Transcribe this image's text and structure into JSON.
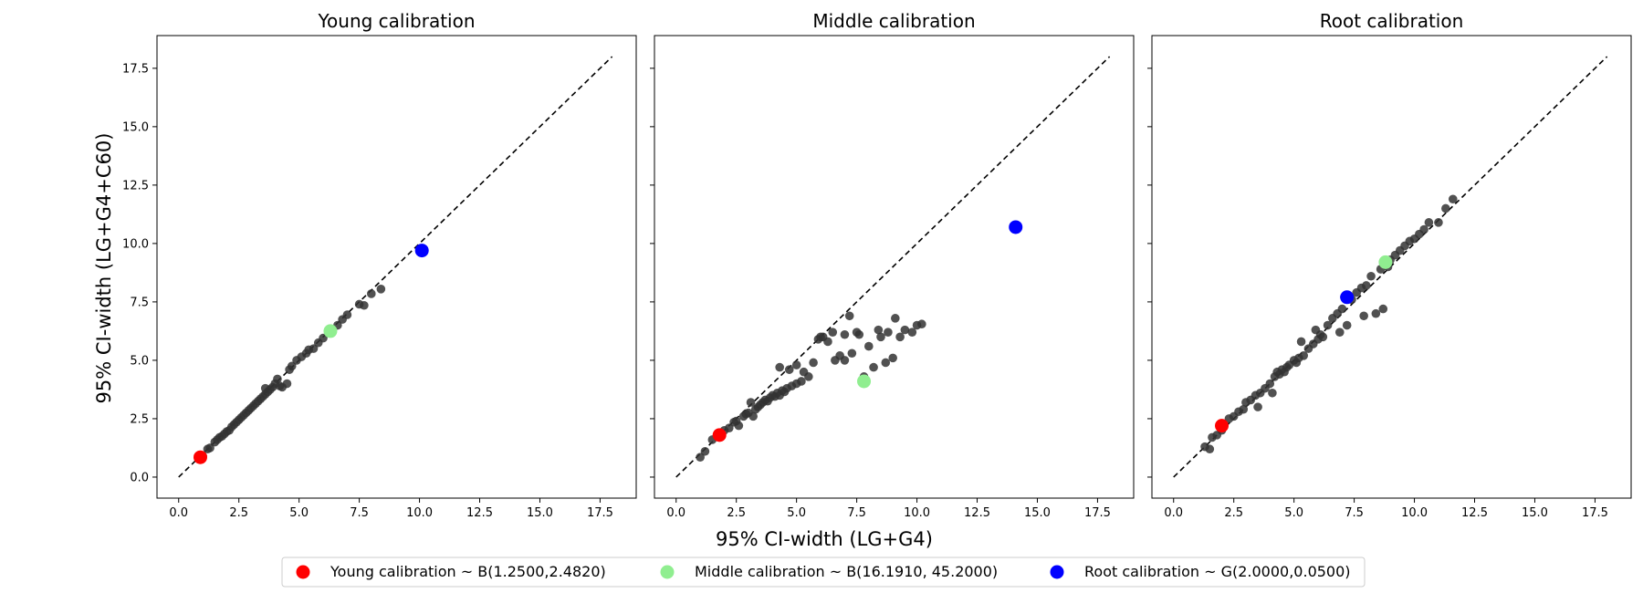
{
  "chart_data": [
    {
      "type": "scatter",
      "title": "Young calibration",
      "xlabel": "95% CI-width (LG+G4)",
      "ylabel": "95% CI-width (LG+G4+C60)",
      "xlim": [
        -0.9,
        19.0
      ],
      "ylim": [
        -0.9,
        18.9
      ],
      "xticks": [
        "0.0",
        "2.5",
        "5.0",
        "7.5",
        "10.0",
        "12.5",
        "15.0",
        "17.5"
      ],
      "yticks": [
        "0.0",
        "2.5",
        "5.0",
        "7.5",
        "10.0",
        "12.5",
        "15.0",
        "17.5"
      ],
      "reference_line": {
        "x": [
          0,
          18
        ],
        "y": [
          0,
          18
        ],
        "style": "dashed",
        "color": "#000000"
      },
      "series": [
        {
          "color": "#333333",
          "points": [
            [
              0.85,
              0.8
            ],
            [
              1.0,
              0.9
            ],
            [
              1.2,
              1.2
            ],
            [
              1.3,
              1.25
            ],
            [
              1.5,
              1.5
            ],
            [
              1.6,
              1.6
            ],
            [
              1.7,
              1.7
            ],
            [
              1.8,
              1.75
            ],
            [
              1.9,
              1.85
            ],
            [
              2.0,
              1.95
            ],
            [
              2.1,
              2.0
            ],
            [
              2.2,
              2.15
            ],
            [
              2.3,
              2.25
            ],
            [
              2.4,
              2.35
            ],
            [
              2.5,
              2.45
            ],
            [
              2.6,
              2.55
            ],
            [
              2.7,
              2.65
            ],
            [
              2.8,
              2.75
            ],
            [
              2.9,
              2.85
            ],
            [
              3.0,
              2.95
            ],
            [
              3.1,
              3.05
            ],
            [
              3.2,
              3.15
            ],
            [
              3.3,
              3.25
            ],
            [
              3.4,
              3.35
            ],
            [
              3.5,
              3.45
            ],
            [
              3.6,
              3.55
            ],
            [
              3.7,
              3.65
            ],
            [
              3.8,
              3.75
            ],
            [
              3.9,
              3.85
            ],
            [
              4.0,
              4.0
            ],
            [
              4.2,
              3.9
            ],
            [
              4.3,
              3.85
            ],
            [
              4.5,
              4.0
            ],
            [
              4.6,
              4.6
            ],
            [
              4.7,
              4.75
            ],
            [
              4.9,
              5.0
            ],
            [
              5.1,
              5.15
            ],
            [
              5.3,
              5.3
            ],
            [
              5.4,
              5.45
            ],
            [
              5.6,
              5.5
            ],
            [
              5.8,
              5.75
            ],
            [
              6.0,
              5.95
            ],
            [
              6.3,
              6.2
            ],
            [
              6.6,
              6.5
            ],
            [
              6.8,
              6.75
            ],
            [
              7.0,
              6.95
            ],
            [
              7.5,
              7.4
            ],
            [
              7.7,
              7.35
            ],
            [
              8.0,
              7.85
            ],
            [
              8.4,
              8.05
            ],
            [
              3.6,
              3.8
            ],
            [
              4.1,
              4.2
            ]
          ]
        },
        {
          "name": "Young calibration ~ B(1.2500,2.4820)",
          "color": "#ff0000",
          "points": [
            [
              0.9,
              0.85
            ]
          ]
        },
        {
          "name": "Middle calibration ~ B(16.1910, 45.2000)",
          "color": "#90ee90",
          "points": [
            [
              6.3,
              6.25
            ]
          ]
        },
        {
          "name": "Root calibration ~ G(2.0000,0.0500)",
          "color": "#0000ff",
          "points": [
            [
              10.1,
              9.7
            ]
          ]
        }
      ]
    },
    {
      "type": "scatter",
      "title": "Middle calibration",
      "xlabel": "95% CI-width (LG+G4)",
      "ylabel": "95% CI-width (LG+G4+C60)",
      "xlim": [
        -0.9,
        19.0
      ],
      "ylim": [
        -0.9,
        18.9
      ],
      "xticks": [
        "0.0",
        "2.5",
        "5.0",
        "7.5",
        "10.0",
        "12.5",
        "15.0",
        "17.5"
      ],
      "yticks": [
        "0.0",
        "2.5",
        "5.0",
        "7.5",
        "10.0",
        "12.5",
        "15.0",
        "17.5"
      ],
      "reference_line": {
        "x": [
          0,
          18
        ],
        "y": [
          0,
          18
        ],
        "style": "dashed",
        "color": "#000000"
      },
      "series": [
        {
          "color": "#333333",
          "points": [
            [
              1.0,
              0.85
            ],
            [
              1.2,
              1.1
            ],
            [
              1.5,
              1.6
            ],
            [
              1.7,
              1.8
            ],
            [
              2.0,
              2.0
            ],
            [
              2.2,
              2.1
            ],
            [
              2.4,
              2.35
            ],
            [
              2.5,
              2.4
            ],
            [
              2.6,
              2.2
            ],
            [
              2.8,
              2.6
            ],
            [
              2.9,
              2.7
            ],
            [
              3.0,
              2.75
            ],
            [
              3.1,
              3.2
            ],
            [
              3.2,
              2.6
            ],
            [
              3.3,
              2.9
            ],
            [
              3.4,
              3.0
            ],
            [
              3.5,
              3.1
            ],
            [
              3.6,
              3.2
            ],
            [
              3.7,
              3.3
            ],
            [
              3.8,
              3.25
            ],
            [
              3.9,
              3.4
            ],
            [
              4.0,
              3.5
            ],
            [
              4.1,
              3.45
            ],
            [
              4.2,
              3.6
            ],
            [
              4.3,
              3.5
            ],
            [
              4.4,
              3.7
            ],
            [
              4.5,
              3.65
            ],
            [
              4.6,
              3.8
            ],
            [
              4.8,
              3.9
            ],
            [
              5.0,
              4.0
            ],
            [
              5.2,
              4.1
            ],
            [
              5.5,
              4.3
            ],
            [
              4.3,
              4.7
            ],
            [
              4.7,
              4.6
            ],
            [
              5.0,
              4.8
            ],
            [
              5.7,
              4.9
            ],
            [
              5.9,
              5.9
            ],
            [
              6.0,
              6.0
            ],
            [
              6.3,
              5.8
            ],
            [
              6.5,
              6.2
            ],
            [
              6.6,
              5.0
            ],
            [
              6.8,
              5.2
            ],
            [
              7.0,
              5.0
            ],
            [
              7.2,
              6.9
            ],
            [
              7.3,
              5.3
            ],
            [
              7.5,
              6.2
            ],
            [
              7.6,
              6.1
            ],
            [
              7.8,
              4.3
            ],
            [
              8.0,
              5.6
            ],
            [
              8.2,
              4.7
            ],
            [
              8.4,
              6.3
            ],
            [
              8.5,
              6.0
            ],
            [
              8.7,
              4.9
            ],
            [
              8.8,
              6.2
            ],
            [
              9.0,
              5.1
            ],
            [
              9.1,
              6.8
            ],
            [
              9.3,
              6.0
            ],
            [
              9.5,
              6.3
            ],
            [
              9.8,
              6.2
            ],
            [
              10.0,
              6.5
            ],
            [
              10.2,
              6.55
            ],
            [
              7.0,
              6.1
            ],
            [
              6.1,
              6.0
            ],
            [
              5.3,
              4.5
            ]
          ]
        },
        {
          "name": "Young calibration ~ B(1.2500,2.4820)",
          "color": "#ff0000",
          "points": [
            [
              1.8,
              1.8
            ]
          ]
        },
        {
          "name": "Middle calibration ~ B(16.1910, 45.2000)",
          "color": "#90ee90",
          "points": [
            [
              7.8,
              4.1
            ]
          ]
        },
        {
          "name": "Root calibration ~ G(2.0000,0.0500)",
          "color": "#0000ff",
          "points": [
            [
              14.1,
              10.7
            ]
          ]
        }
      ]
    },
    {
      "type": "scatter",
      "title": "Root calibration",
      "xlabel": "95% CI-width (LG+G4)",
      "ylabel": "95% CI-width (LG+G4+C60)",
      "xlim": [
        -0.9,
        19.0
      ],
      "ylim": [
        -0.9,
        18.9
      ],
      "xticks": [
        "0.0",
        "2.5",
        "5.0",
        "7.5",
        "10.0",
        "12.5",
        "15.0",
        "17.5"
      ],
      "yticks": [
        "0.0",
        "2.5",
        "5.0",
        "7.5",
        "10.0",
        "12.5",
        "15.0",
        "17.5"
      ],
      "reference_line": {
        "x": [
          0,
          18
        ],
        "y": [
          0,
          18
        ],
        "style": "dashed",
        "color": "#000000"
      },
      "series": [
        {
          "color": "#333333",
          "points": [
            [
              1.3,
              1.3
            ],
            [
              1.5,
              1.2
            ],
            [
              1.6,
              1.7
            ],
            [
              1.8,
              1.8
            ],
            [
              2.0,
              2.0
            ],
            [
              2.3,
              2.5
            ],
            [
              2.5,
              2.6
            ],
            [
              2.7,
              2.8
            ],
            [
              2.9,
              2.9
            ],
            [
              3.0,
              3.2
            ],
            [
              3.2,
              3.3
            ],
            [
              3.4,
              3.5
            ],
            [
              3.6,
              3.6
            ],
            [
              3.5,
              3.0
            ],
            [
              3.8,
              3.8
            ],
            [
              4.0,
              4.0
            ],
            [
              4.1,
              3.6
            ],
            [
              4.2,
              4.3
            ],
            [
              4.4,
              4.4
            ],
            [
              4.5,
              4.6
            ],
            [
              4.6,
              4.5
            ],
            [
              4.8,
              4.8
            ],
            [
              5.0,
              5.0
            ],
            [
              5.2,
              5.1
            ],
            [
              5.3,
              5.8
            ],
            [
              5.4,
              5.2
            ],
            [
              5.6,
              5.5
            ],
            [
              5.8,
              5.7
            ],
            [
              5.9,
              6.3
            ],
            [
              6.0,
              5.9
            ],
            [
              6.2,
              6.0
            ],
            [
              6.4,
              6.5
            ],
            [
              6.6,
              6.8
            ],
            [
              6.8,
              7.0
            ],
            [
              6.9,
              6.2
            ],
            [
              7.0,
              7.2
            ],
            [
              7.2,
              6.5
            ],
            [
              7.4,
              7.6
            ],
            [
              7.6,
              7.9
            ],
            [
              7.8,
              8.1
            ],
            [
              7.9,
              6.9
            ],
            [
              8.0,
              8.2
            ],
            [
              8.2,
              8.6
            ],
            [
              8.4,
              7.0
            ],
            [
              8.6,
              8.9
            ],
            [
              8.7,
              7.2
            ],
            [
              8.9,
              9.0
            ],
            [
              9.0,
              9.3
            ],
            [
              9.2,
              9.5
            ],
            [
              9.4,
              9.7
            ],
            [
              9.6,
              9.9
            ],
            [
              9.8,
              10.1
            ],
            [
              10.0,
              10.2
            ],
            [
              10.2,
              10.4
            ],
            [
              10.4,
              10.6
            ],
            [
              10.6,
              10.9
            ],
            [
              11.0,
              10.9
            ],
            [
              11.3,
              11.5
            ],
            [
              11.6,
              11.9
            ],
            [
              4.3,
              4.5
            ],
            [
              4.7,
              4.7
            ],
            [
              5.1,
              4.9
            ],
            [
              6.1,
              6.1
            ],
            [
              7.1,
              7.7
            ]
          ]
        },
        {
          "name": "Young calibration ~ B(1.2500,2.4820)",
          "color": "#ff0000",
          "points": [
            [
              2.0,
              2.2
            ]
          ]
        },
        {
          "name": "Middle calibration ~ B(16.1910, 45.2000)",
          "color": "#90ee90",
          "points": [
            [
              8.8,
              9.2
            ]
          ]
        },
        {
          "name": "Root calibration ~ G(2.0000,0.0500)",
          "color": "#0000ff",
          "points": [
            [
              7.2,
              7.7
            ]
          ]
        }
      ]
    }
  ],
  "figure": {
    "shared_xlabel": "95% CI-width (LG+G4)",
    "shared_ylabel": "95% CI-width (LG+G4+C60)"
  },
  "legend": {
    "placement": "bottom-center",
    "items": [
      {
        "label": "Young calibration ~ B(1.2500,2.4820)",
        "color": "#ff0000"
      },
      {
        "label": "Middle calibration ~ B(16.1910, 45.2000)",
        "color": "#90ee90"
      },
      {
        "label": "Root calibration ~ G(2.0000,0.0500)",
        "color": "#0000ff"
      }
    ]
  }
}
